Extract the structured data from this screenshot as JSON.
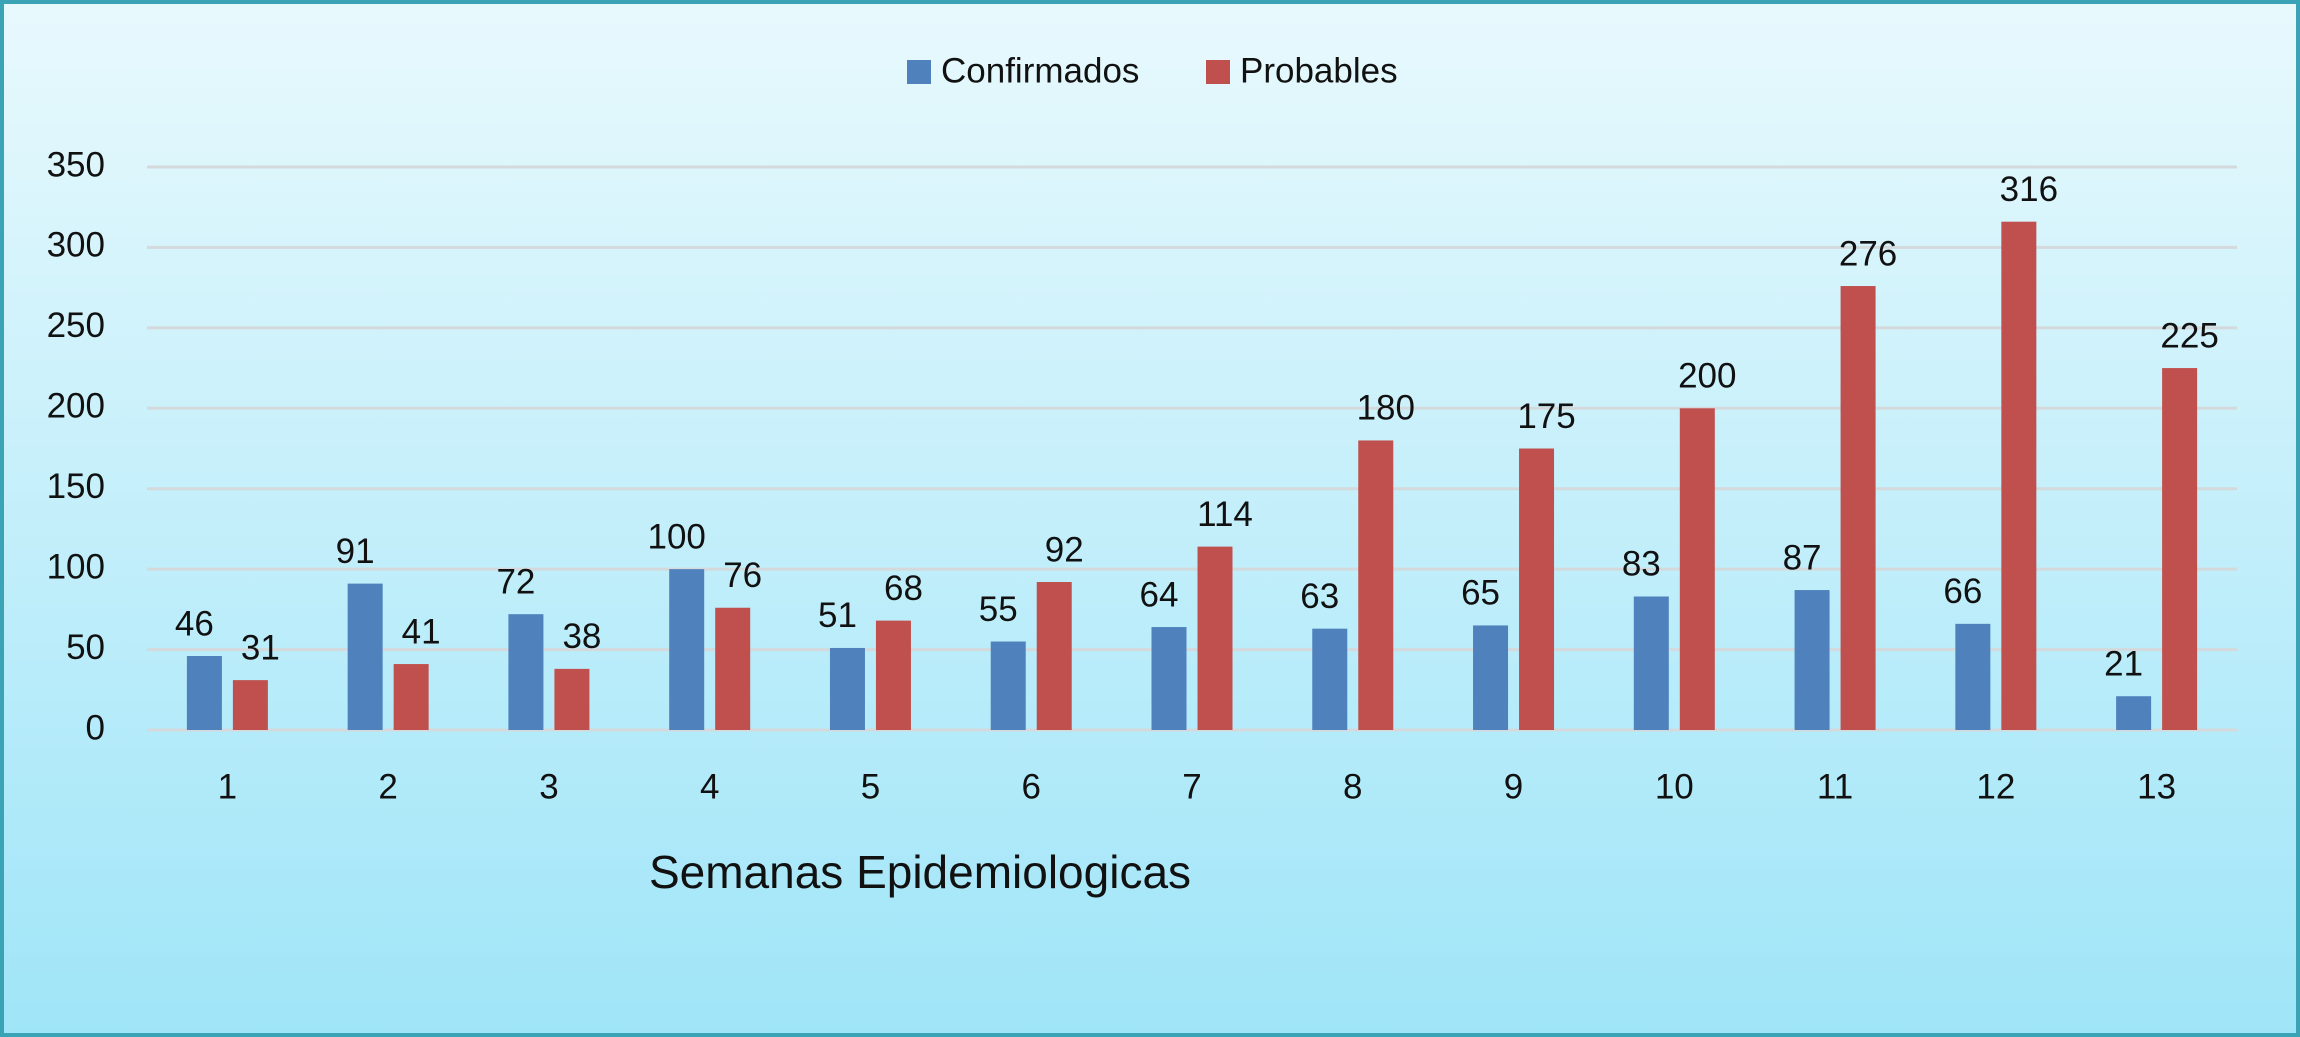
{
  "chart_data": {
    "type": "bar",
    "x_label": "Semanas Epidemiologicas",
    "categories": [
      "1",
      "2",
      "3",
      "4",
      "5",
      "6",
      "7",
      "8",
      "9",
      "10",
      "11",
      "12",
      "13"
    ],
    "series": [
      {
        "name": "Confirmados",
        "color": "#4f81bd",
        "values": [
          46,
          91,
          72,
          100,
          51,
          55,
          64,
          63,
          65,
          83,
          87,
          66,
          21
        ]
      },
      {
        "name": "Probables",
        "color": "#c0504d",
        "values": [
          31,
          41,
          38,
          76,
          68,
          92,
          114,
          180,
          175,
          200,
          276,
          316,
          225
        ]
      }
    ],
    "ylim": [
      0,
      350
    ],
    "yticks": [
      0,
      50,
      100,
      150,
      200,
      250,
      300,
      350
    ],
    "grid": true,
    "legend": "top"
  }
}
